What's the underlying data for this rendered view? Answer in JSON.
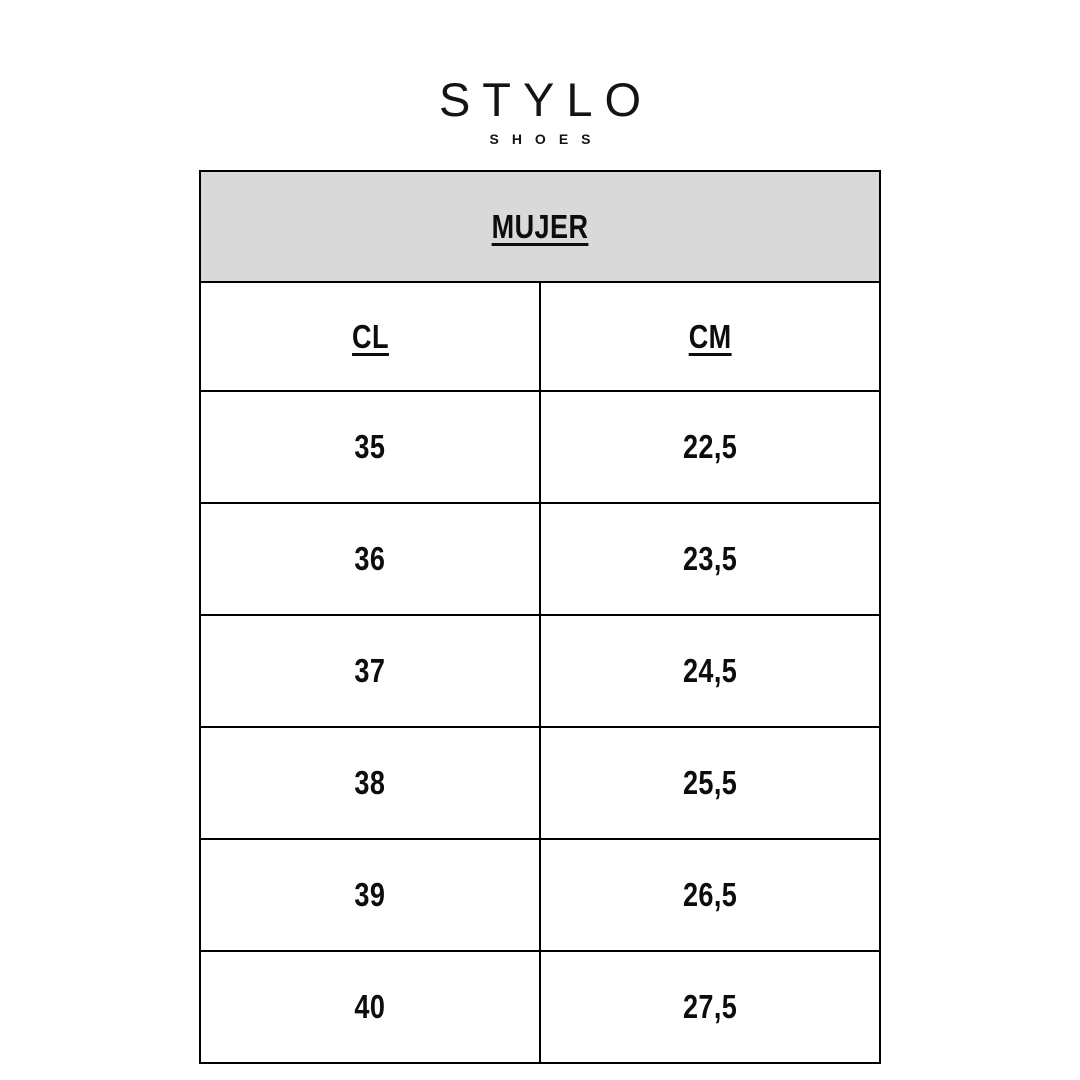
{
  "brand": {
    "name": "STYLO",
    "subtitle": "SHOES"
  },
  "table": {
    "title": "MUJER",
    "columns": [
      "CL",
      "CM"
    ],
    "rows": [
      [
        "35",
        "22,5"
      ],
      [
        "36",
        "23,5"
      ],
      [
        "37",
        "24,5"
      ],
      [
        "38",
        "25,5"
      ],
      [
        "39",
        "26,5"
      ],
      [
        "40",
        "27,5"
      ]
    ],
    "colors": {
      "title_row_background": "#d9d9d9",
      "border": "#000000",
      "text": "#0d0d0d",
      "page_background": "#ffffff"
    }
  }
}
